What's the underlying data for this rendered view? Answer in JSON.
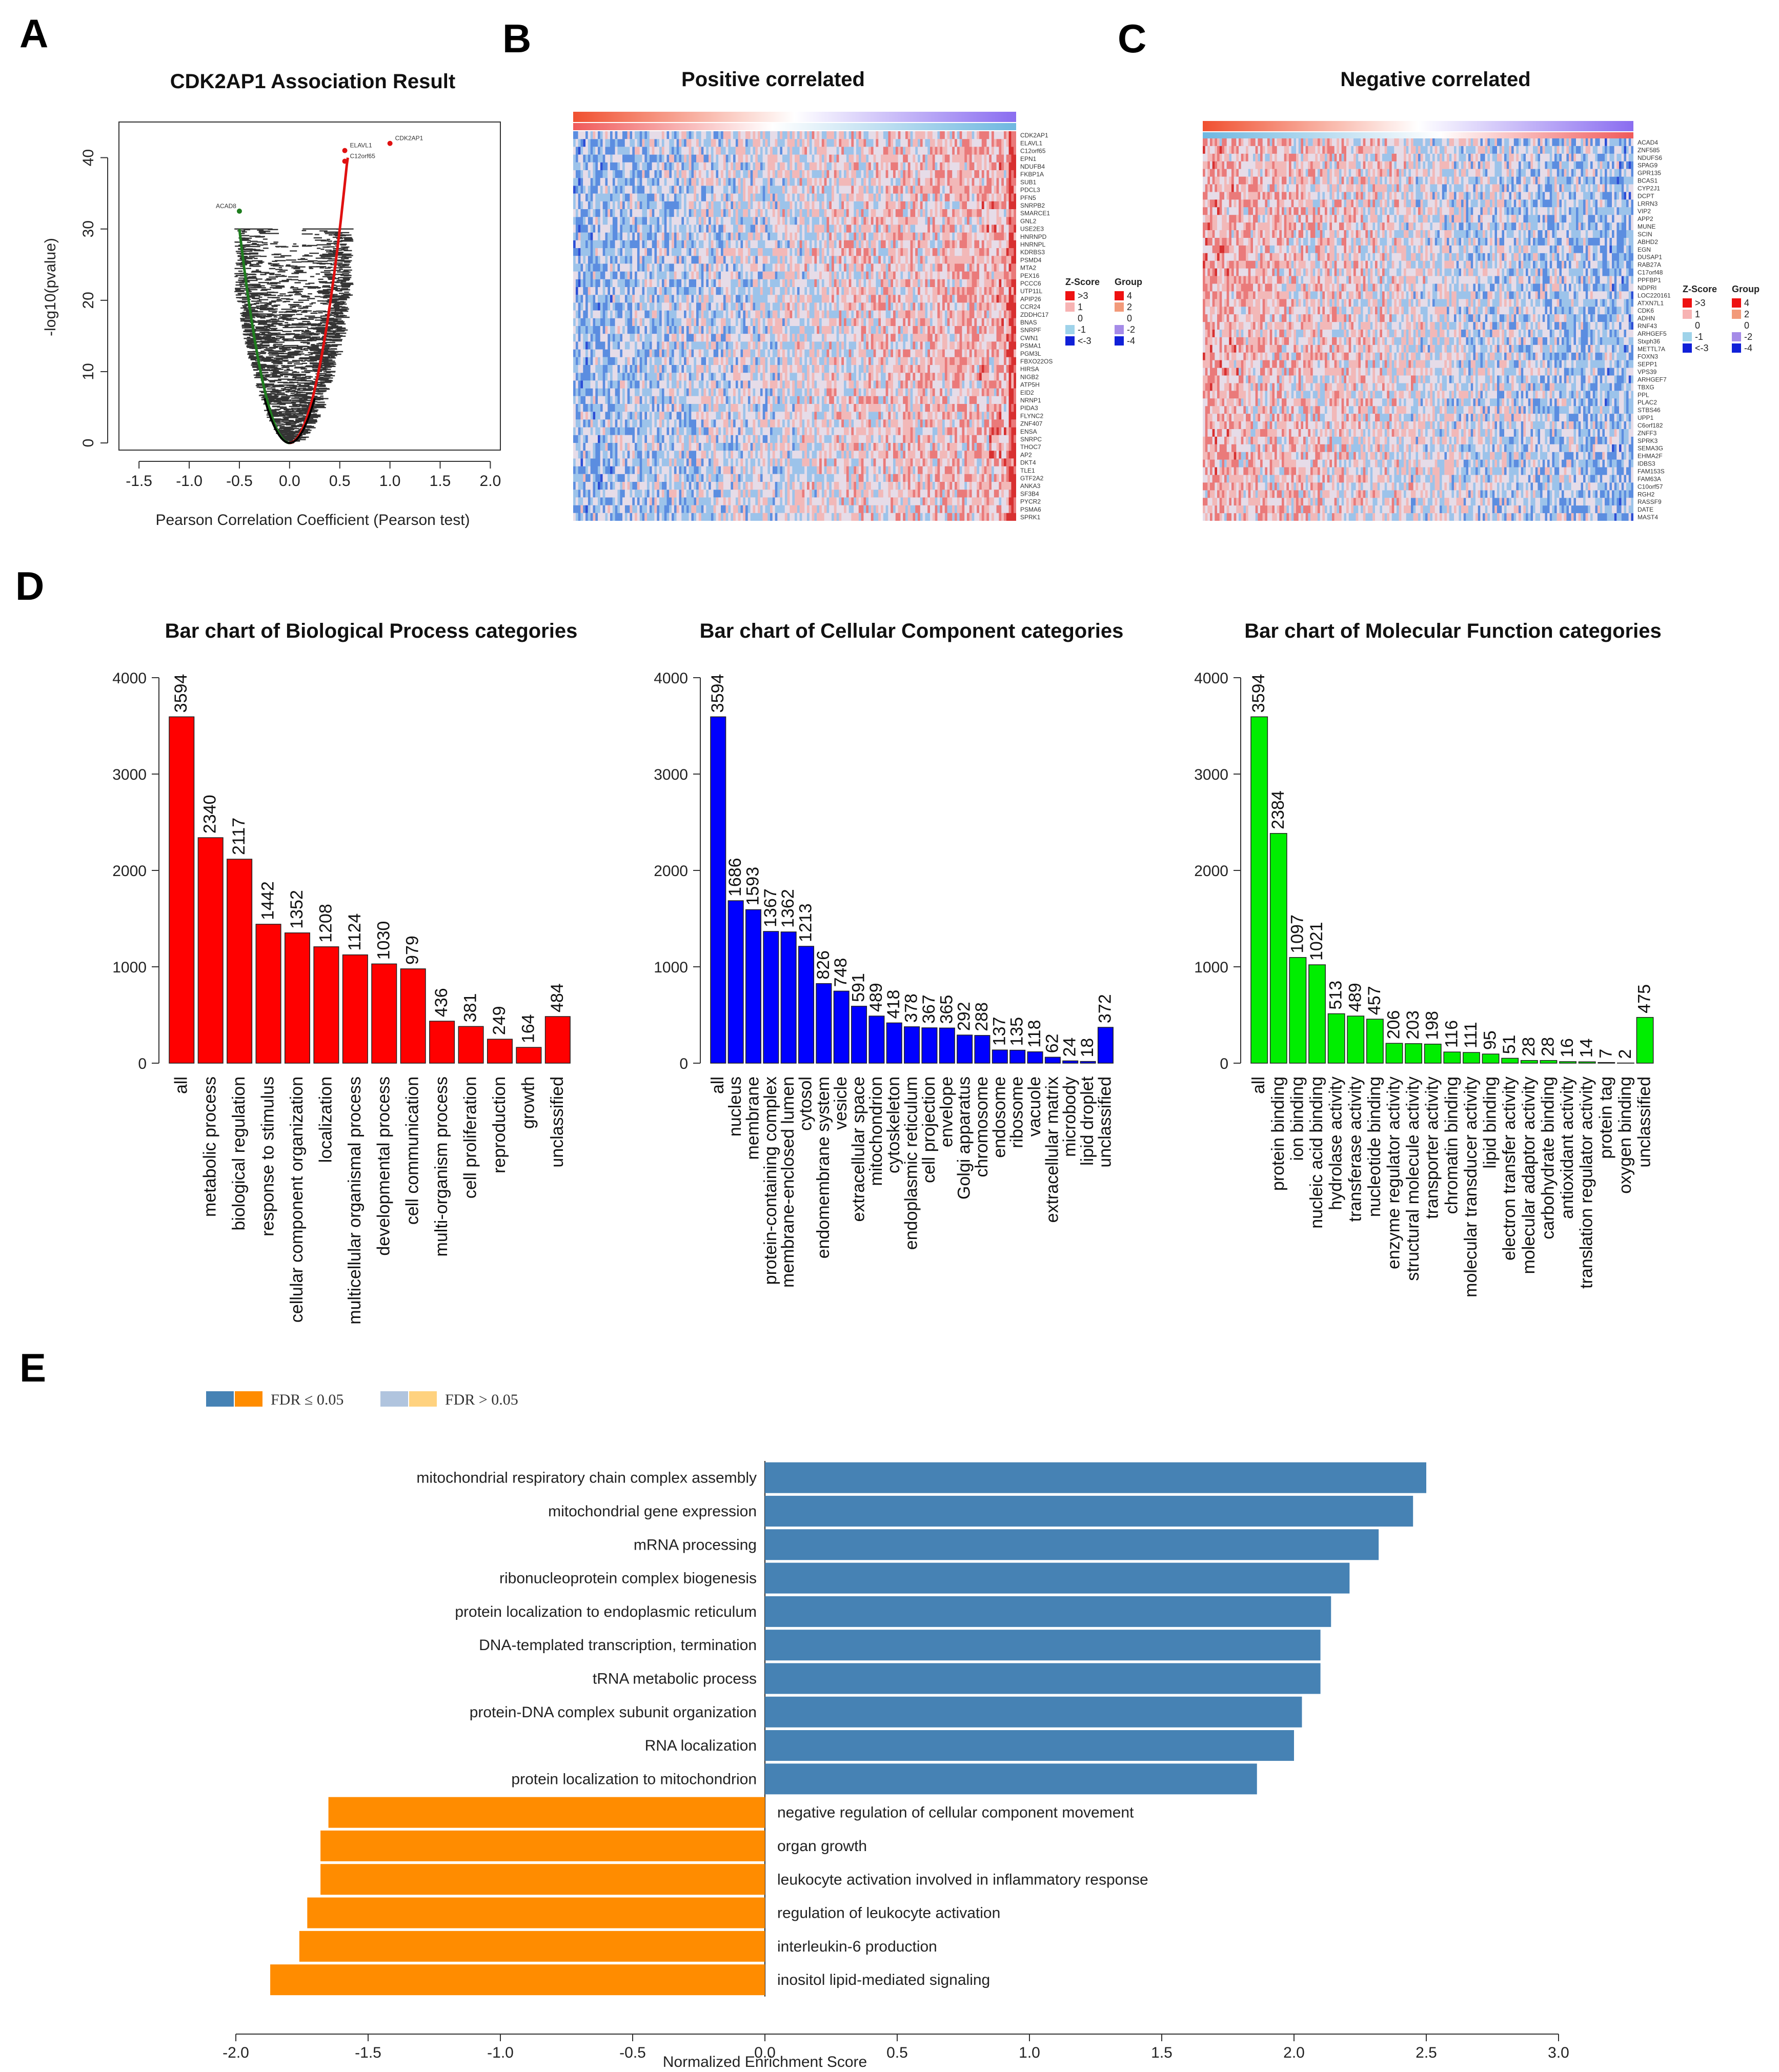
{
  "panel_letters": {
    "a": "A",
    "b": "B",
    "c": "C",
    "d": "D",
    "e": "E"
  },
  "colors": {
    "red": "#ff0000",
    "blue": "#0000ff",
    "green": "#00ee00",
    "pos_bar": "#4682b4",
    "neg_bar": "#ff8c00",
    "pos_bar_light": "#b0c4de",
    "neg_bar_light": "#ffd27f"
  },
  "chart_data": [
    {
      "id": "volcano",
      "type": "scatter",
      "title": "CDK2AP1 Association Result",
      "xlabel": "Pearson Correlation Coefficient (Pearson test)",
      "ylabel": "-log10(pvalue)",
      "xlim": [
        -1.7,
        2.1
      ],
      "ylim": [
        -1,
        45
      ],
      "xticks": [
        "-1.5",
        "-1.0",
        "-0.5",
        "0.0",
        "0.5",
        "1.0",
        "1.5",
        "2.0"
      ],
      "xtick_values": [
        -1.5,
        -1.0,
        -0.5,
        0.0,
        0.5,
        1.0,
        1.5,
        2.0
      ],
      "yticks": [
        "0",
        "10",
        "20",
        "30",
        "40"
      ],
      "ytick_values": [
        0,
        10,
        20,
        30,
        40
      ],
      "labeled_points": [
        {
          "label": "CDK2AP1",
          "x": 1.0,
          "y": 42
        },
        {
          "label": "ELAVL1",
          "x": 0.55,
          "y": 41
        },
        {
          "label": "C12orf65",
          "x": 0.55,
          "y": 39.5
        },
        {
          "label": "ACAD8",
          "x": -0.5,
          "y": 32.5
        }
      ]
    },
    {
      "id": "heat_pos",
      "type": "heatmap",
      "title": "Positive correlated",
      "genes": [
        "CDK2AP1",
        "ELAVL1",
        "C12orf65",
        "EPN1",
        "NDUFB4",
        "FKBP1A",
        "SUB1",
        "PDCL3",
        "PFN5",
        "SNRPB2",
        "SMARCE1",
        "GNL2",
        "USE2E3",
        "HNRNPD",
        "HNRNPL",
        "KDRBS3",
        "PSMD4",
        "MTA2",
        "PEX16",
        "PCCC6",
        "UTP11L",
        "APIP26",
        "CCR24",
        "ZDDHC17",
        "BNAS",
        "SNRPF",
        "CWN1",
        "PSMA1",
        "PGM3L",
        "FBXO22OS",
        "HIRSA",
        "NIGB2",
        "ATP5H",
        "EID2",
        "NRNP1",
        "PIDA3",
        "FLYNC2",
        "ZNF407",
        "ENSA",
        "SNRPC",
        "THOC7",
        "AP2",
        "DKT4",
        "TLE1",
        "GTF2A2",
        "ANKA3",
        "SF3B4",
        "PYCR2",
        "PSMA6",
        "SPRK1"
      ],
      "zscore_title": "Z-Score",
      "zscore_levels": [
        ">3",
        "1",
        "0",
        "-1",
        "<-3"
      ],
      "group_title": "Group",
      "group_levels": [
        "4",
        "2",
        "0",
        "-2",
        "-4"
      ]
    },
    {
      "id": "heat_neg",
      "type": "heatmap",
      "title": "Negative correlated",
      "genes": [
        "ACAD4",
        "ZNF585",
        "NDUFS6",
        "SPAG9",
        "GPR135",
        "BCAS1",
        "CYP2J1",
        "DCPT",
        "LRRN3",
        "VIP2",
        "APP2",
        "MUNE",
        "SCIN",
        "ABHD2",
        "EGN",
        "DUSAP1",
        "RAB27A",
        "C17orf48",
        "PPFBP1",
        "NDPRI",
        "LOC220161",
        "ATXN7L1",
        "CDK6",
        "ADHN",
        "RNF43",
        "ARHGEF5",
        "Stxph36",
        "METTL7A",
        "FOXN3",
        "SEPP1",
        "VPS39",
        "ARHGEF7",
        "TBXG",
        "PPL",
        "PLAC2",
        "STBS46",
        "UPP1",
        "C6orf182",
        "ZNFF3",
        "SPRK3",
        "SEMA3G",
        "EHMA2F",
        "IDBS3",
        "FAM153S",
        "FAM63A",
        "C10orf57",
        "RGH2",
        "RASSF9",
        "DATE",
        "MAST4"
      ],
      "zscore_title": "Z-Score",
      "zscore_levels": [
        ">3",
        "1",
        "0",
        "-1",
        "<-3"
      ],
      "group_title": "Group",
      "group_levels": [
        "4",
        "2",
        "0",
        "-2",
        "-4"
      ]
    },
    {
      "id": "bp",
      "type": "bar",
      "title": "Bar chart of Biological Process categories",
      "ylim": [
        0,
        4000
      ],
      "yticks": [
        "0",
        "1000",
        "2000",
        "3000",
        "4000"
      ],
      "ytick_values": [
        0,
        1000,
        2000,
        3000,
        4000
      ],
      "categories": [
        "all",
        "metabolic process",
        "biological regulation",
        "response to stimulus",
        "cellular component organization",
        "localization",
        "multicellular organismal process",
        "developmental process",
        "cell communication",
        "multi-organism process",
        "cell proliferation",
        "reproduction",
        "growth",
        "unclassified"
      ],
      "values": [
        3594,
        2340,
        2117,
        1442,
        1352,
        1208,
        1124,
        1030,
        979,
        436,
        381,
        249,
        164,
        484
      ],
      "labels": [
        "3594",
        "2340",
        "2117",
        "1442",
        "1352",
        "1208",
        "1124",
        "1030",
        "979",
        "436",
        "381",
        "249",
        "164",
        "484"
      ]
    },
    {
      "id": "cc",
      "type": "bar",
      "title": "Bar chart of Cellular Component categories",
      "ylim": [
        0,
        4000
      ],
      "yticks": [
        "0",
        "1000",
        "2000",
        "3000",
        "4000"
      ],
      "ytick_values": [
        0,
        1000,
        2000,
        3000,
        4000
      ],
      "categories": [
        "all",
        "nucleus",
        "membrane",
        "protein-containing complex",
        "membrane-enclosed lumen",
        "cytosol",
        "endomembrane system",
        "vesicle",
        "extracellular space",
        "mitochondrion",
        "cytoskeleton",
        "endoplasmic reticulum",
        "cell projection",
        "envelope",
        "Golgi apparatus",
        "chromosome",
        "endosome",
        "ribosome",
        "vacuole",
        "extracellular matrix",
        "microbody",
        "lipid droplet",
        "unclassified"
      ],
      "values": [
        3594,
        1686,
        1593,
        1367,
        1362,
        1213,
        826,
        748,
        591,
        489,
        418,
        378,
        367,
        365,
        292,
        288,
        137,
        135,
        118,
        62,
        24,
        18,
        372
      ],
      "labels": [
        "3594",
        "1686",
        "1593",
        "1367",
        "1362",
        "1213",
        "826",
        "748",
        "591",
        "489",
        "418",
        "378",
        "367",
        "365",
        "292",
        "288",
        "137",
        "135",
        "118",
        "62",
        "24",
        "18",
        "372"
      ]
    },
    {
      "id": "mf",
      "type": "bar",
      "title": "Bar chart of Molecular Function categories",
      "ylim": [
        0,
        4000
      ],
      "yticks": [
        "0",
        "1000",
        "2000",
        "3000",
        "4000"
      ],
      "ytick_values": [
        0,
        1000,
        2000,
        3000,
        4000
      ],
      "categories": [
        "all",
        "protein binding",
        "ion binding",
        "nucleic acid binding",
        "hydrolase activity",
        "transferase activity",
        "nucleotide binding",
        "enzyme regulator activity",
        "structural molecule activity",
        "transporter activity",
        "chromatin binding",
        "molecular transducer activity",
        "lipid binding",
        "electron transfer activity",
        "molecular adaptor activity",
        "carbohydrate binding",
        "antioxidant activity",
        "translation regulator activity",
        "protein tag",
        "oxygen binding",
        "unclassified"
      ],
      "values": [
        3594,
        2384,
        1097,
        1021,
        513,
        489,
        457,
        206,
        203,
        198,
        116,
        111,
        95,
        51,
        28,
        28,
        16,
        14,
        7,
        2,
        475
      ],
      "labels": [
        "3594",
        "2384",
        "1097",
        "1021",
        "513",
        "489",
        "457",
        "206",
        "203",
        "198",
        "116",
        "111",
        "95",
        "51",
        "28",
        "28",
        "16",
        "14",
        "7",
        "2",
        "475"
      ]
    },
    {
      "id": "gsea",
      "type": "bar",
      "orientation": "horizontal",
      "xlabel": "Normalized Enrichment Score",
      "xlim": [
        -2.0,
        3.0
      ],
      "xticks": [
        "-2.0",
        "-1.5",
        "-1.0",
        "-0.5",
        "0.0",
        "0.5",
        "1.0",
        "1.5",
        "2.0",
        "2.5",
        "3.0"
      ],
      "xtick_values": [
        -2.0,
        -1.5,
        -1.0,
        -0.5,
        0.0,
        0.5,
        1.0,
        1.5,
        2.0,
        2.5,
        3.0
      ],
      "legend": [
        "FDR ≤ 0.05",
        "FDR > 0.05"
      ],
      "categories": [
        "mitochondrial respiratory chain complex assembly",
        "mitochondrial gene expression",
        "mRNA processing",
        "ribonucleoprotein complex biogenesis",
        "protein localization to endoplasmic reticulum",
        "DNA-templated transcription, termination",
        "tRNA metabolic process",
        "protein-DNA complex subunit organization",
        "RNA localization",
        "protein localization to mitochondrion",
        "negative regulation of cellular component movement",
        "organ growth",
        "leukocyte activation involved in inflammatory response",
        "regulation of leukocyte activation",
        "interleukin-6 production",
        "inositol lipid-mediated signaling"
      ],
      "values": [
        2.5,
        2.45,
        2.32,
        2.21,
        2.14,
        2.1,
        2.1,
        2.03,
        2.0,
        1.86,
        -1.65,
        -1.68,
        -1.68,
        -1.73,
        -1.76,
        -1.87
      ]
    }
  ]
}
